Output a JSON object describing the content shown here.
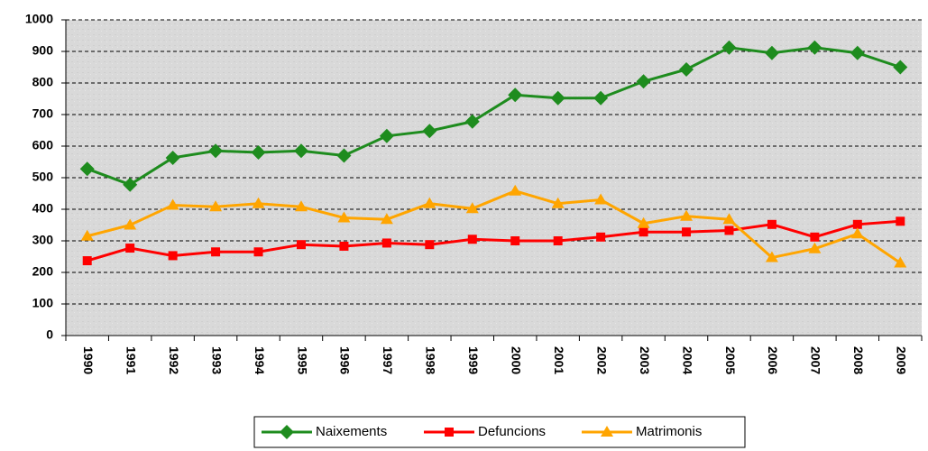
{
  "chart_data": {
    "type": "line",
    "categories": [
      "1990",
      "1991",
      "1992",
      "1993",
      "1994",
      "1995",
      "1996",
      "1997",
      "1998",
      "1999",
      "2000",
      "2001",
      "2002",
      "2003",
      "2004",
      "2005",
      "2006",
      "2007",
      "2008",
      "2009"
    ],
    "series": [
      {
        "name": "Naixements",
        "color": "#1e8c1e",
        "marker": "diamond",
        "values": [
          528,
          478,
          563,
          585,
          580,
          585,
          570,
          632,
          648,
          678,
          762,
          752,
          752,
          805,
          843,
          912,
          895,
          912,
          895,
          850
        ]
      },
      {
        "name": "Defuncions",
        "color": "#ff0000",
        "marker": "square",
        "values": [
          237,
          277,
          253,
          265,
          265,
          288,
          283,
          293,
          288,
          305,
          300,
          300,
          312,
          328,
          328,
          333,
          352,
          312,
          352,
          362
        ]
      },
      {
        "name": "Matrimonis",
        "color": "#ffa500",
        "marker": "triangle",
        "values": [
          315,
          350,
          413,
          408,
          418,
          408,
          373,
          368,
          418,
          402,
          458,
          418,
          430,
          355,
          378,
          368,
          247,
          275,
          322,
          230
        ]
      }
    ],
    "ylim": [
      0,
      1000
    ],
    "yticks": [
      0,
      100,
      200,
      300,
      400,
      500,
      600,
      700,
      800,
      900,
      1000
    ],
    "grid": true,
    "legend": "bottom"
  }
}
